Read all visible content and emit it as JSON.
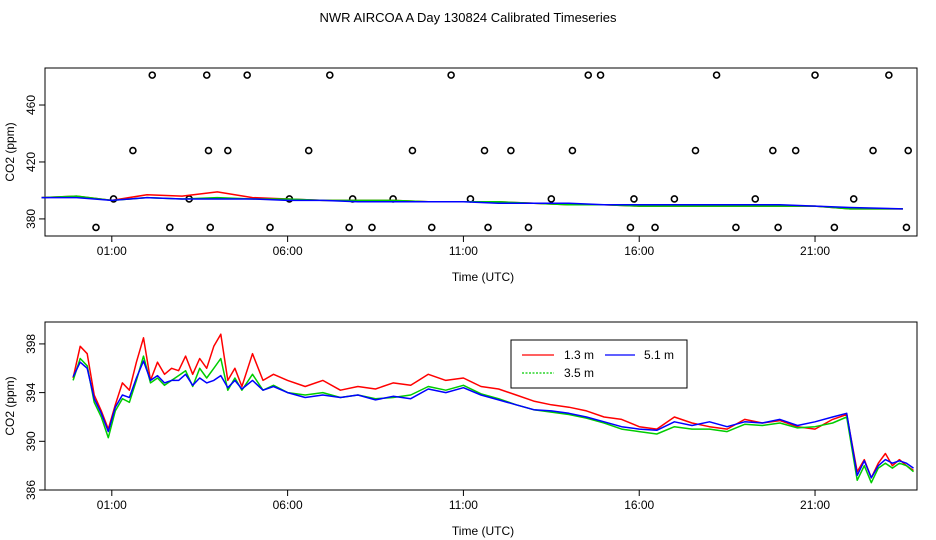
{
  "title": "NWR AIRCOA A  Day 130824  Calibrated Timeseries",
  "colors": {
    "h1": "#ff0000",
    "h3": "#00cc00",
    "h5": "#0000ff",
    "axis": "#000000"
  },
  "chart_data": [
    {
      "type": "scatter+line",
      "name": "top",
      "title": "",
      "xlabel": "Time (UTC)",
      "ylabel": "CO2 (ppm)",
      "xlim": [
        -0.9,
        23.9
      ],
      "ylim": [
        368,
        486
      ],
      "xticks": [
        1,
        6,
        11,
        16,
        21
      ],
      "xtick_labels": [
        "01:00",
        "06:00",
        "11:00",
        "16:00",
        "21:00"
      ],
      "yticks": [
        380,
        420,
        460
      ],
      "ytick_labels": [
        "380",
        "420",
        "460"
      ],
      "reference_points": {
        "x": [
          0.55,
          1.05,
          1.6,
          2.15,
          2.65,
          3.2,
          3.7,
          3.75,
          3.8,
          4.3,
          4.85,
          5.5,
          6.05,
          6.6,
          7.2,
          7.75,
          7.85,
          8.4,
          9.0,
          9.55,
          10.1,
          10.65,
          11.2,
          11.6,
          11.7,
          12.35,
          12.85,
          13.5,
          14.1,
          14.55,
          14.9,
          15.75,
          15.85,
          16.45,
          17.0,
          17.6,
          18.2,
          18.75,
          19.3,
          19.8,
          19.95,
          20.45,
          21.0,
          21.55,
          22.1,
          22.65,
          23.1,
          23.6,
          23.65
        ],
        "y": [
          374,
          394,
          428,
          481,
          374,
          394,
          481,
          428,
          374,
          428,
          481,
          374,
          394,
          428,
          481,
          374,
          394,
          374,
          394,
          428,
          374,
          481,
          394,
          428,
          374,
          428,
          374,
          394,
          428,
          481,
          481,
          374,
          394,
          374,
          394,
          428,
          481,
          374,
          394,
          428,
          374,
          428,
          481,
          374,
          394,
          428,
          481,
          374,
          428
        ]
      },
      "series": [
        {
          "name": "1.3 m",
          "color": "#ff0000",
          "x": [
            -1,
            0,
            1,
            2,
            3,
            4,
            5,
            6,
            7,
            8,
            9,
            10,
            11,
            12,
            13,
            14,
            15,
            16,
            17,
            18,
            19,
            20,
            21,
            22,
            23.5
          ],
          "y": [
            395,
            396,
            393,
            397,
            396,
            399,
            395,
            394,
            393,
            393,
            393,
            392,
            392,
            392,
            391,
            390,
            390,
            389,
            389,
            389,
            389,
            389,
            389,
            387,
            387
          ]
        },
        {
          "name": "3.5 m",
          "color": "#00cc00",
          "x": [
            -1,
            0,
            1,
            2,
            3,
            4,
            5,
            6,
            7,
            8,
            9,
            10,
            11,
            12,
            13,
            14,
            15,
            16,
            17,
            18,
            19,
            20,
            21,
            22,
            23.5
          ],
          "y": [
            395,
            396,
            393,
            395,
            394,
            395,
            394,
            394,
            393,
            393,
            393,
            392,
            392,
            392,
            391,
            390,
            390,
            389,
            389,
            389,
            389,
            389,
            389,
            387,
            387
          ]
        },
        {
          "name": "5.1 m",
          "color": "#0000ff",
          "x": [
            -1,
            0,
            1,
            2,
            3,
            4,
            5,
            6,
            7,
            8,
            9,
            10,
            11,
            12,
            13,
            14,
            15,
            16,
            17,
            18,
            19,
            20,
            21,
            22,
            23.5
          ],
          "y": [
            395,
            395,
            393,
            395,
            394,
            394,
            394,
            393,
            393,
            392,
            392,
            392,
            392,
            391,
            391,
            391,
            390,
            390,
            390,
            390,
            390,
            390,
            389,
            388,
            387
          ]
        }
      ]
    },
    {
      "type": "line",
      "name": "bottom",
      "title": "",
      "xlabel": "Time (UTC)",
      "ylabel": "CO2 (ppm)",
      "xlim": [
        -0.9,
        23.9
      ],
      "ylim": [
        386,
        399.8
      ],
      "xticks": [
        1,
        6,
        11,
        16,
        21
      ],
      "xtick_labels": [
        "01:00",
        "06:00",
        "11:00",
        "16:00",
        "21:00"
      ],
      "yticks": [
        386,
        390,
        394,
        398
      ],
      "ytick_labels": [
        "386",
        "390",
        "394",
        "398"
      ],
      "legend": {
        "position": "top-center",
        "entries": [
          "1.3 m",
          "5.1 m",
          "3.5 m"
        ]
      },
      "series": [
        {
          "name": "1.3 m",
          "color": "#ff0000",
          "x": [
            -0.1,
            0.1,
            0.3,
            0.5,
            0.7,
            0.9,
            1.1,
            1.3,
            1.5,
            1.7,
            1.9,
            2.1,
            2.3,
            2.5,
            2.7,
            2.9,
            3.1,
            3.3,
            3.5,
            3.7,
            3.9,
            4.1,
            4.3,
            4.5,
            4.7,
            5.0,
            5.3,
            5.6,
            6.0,
            6.5,
            7.0,
            7.5,
            8.0,
            8.5,
            9.0,
            9.5,
            10.0,
            10.5,
            11.0,
            11.5,
            12.0,
            12.5,
            13.0,
            13.5,
            14.0,
            14.5,
            15.0,
            15.5,
            16.0,
            16.5,
            17.0,
            17.5,
            18.0,
            18.5,
            19.0,
            19.5,
            20.0,
            20.5,
            21.0,
            21.5,
            21.9,
            22.2,
            22.4,
            22.6,
            22.8,
            23.0,
            23.2,
            23.4,
            23.6,
            23.8
          ],
          "y": [
            395.2,
            397.8,
            397.2,
            393.8,
            392.5,
            391.0,
            393.0,
            394.8,
            394.2,
            396.5,
            398.5,
            395.0,
            396.5,
            395.5,
            396.0,
            395.8,
            397.0,
            395.5,
            396.8,
            396.0,
            397.8,
            398.8,
            395.0,
            396.0,
            394.5,
            397.2,
            395.0,
            395.5,
            395.0,
            394.5,
            395.0,
            394.2,
            394.5,
            394.3,
            394.8,
            394.6,
            395.5,
            395.0,
            395.2,
            394.5,
            394.3,
            393.8,
            393.3,
            393.0,
            392.8,
            392.5,
            392.0,
            391.8,
            391.2,
            391.0,
            392.0,
            391.5,
            391.2,
            391.0,
            391.8,
            391.5,
            391.7,
            391.2,
            391.0,
            391.8,
            392.2,
            387.5,
            388.5,
            387.0,
            388.2,
            389.0,
            388.0,
            388.5,
            388.0,
            387.6
          ]
        },
        {
          "name": "3.5 m",
          "color": "#00cc00",
          "x": [
            -0.1,
            0.1,
            0.3,
            0.5,
            0.7,
            0.9,
            1.1,
            1.3,
            1.5,
            1.7,
            1.9,
            2.1,
            2.3,
            2.5,
            2.7,
            2.9,
            3.1,
            3.3,
            3.5,
            3.7,
            3.9,
            4.1,
            4.3,
            4.5,
            4.7,
            5.0,
            5.3,
            5.6,
            6.0,
            6.5,
            7.0,
            7.5,
            8.0,
            8.5,
            9.0,
            9.5,
            10.0,
            10.5,
            11.0,
            11.5,
            12.0,
            12.5,
            13.0,
            13.5,
            14.0,
            14.5,
            15.0,
            15.5,
            16.0,
            16.5,
            17.0,
            17.5,
            18.0,
            18.5,
            19.0,
            19.5,
            20.0,
            20.5,
            21.0,
            21.5,
            21.9,
            22.2,
            22.4,
            22.6,
            22.8,
            23.0,
            23.2,
            23.4,
            23.6,
            23.8
          ],
          "y": [
            395.0,
            396.8,
            396.2,
            393.2,
            392.0,
            390.3,
            392.5,
            393.5,
            393.2,
            395.0,
            397.0,
            394.8,
            395.2,
            394.6,
            395.0,
            395.4,
            395.8,
            394.5,
            396.0,
            395.2,
            396.0,
            396.8,
            394.2,
            395.2,
            394.2,
            395.5,
            394.2,
            394.6,
            394.0,
            393.8,
            394.0,
            393.6,
            393.8,
            393.5,
            393.6,
            393.8,
            394.5,
            394.2,
            394.6,
            393.9,
            393.5,
            393.0,
            392.6,
            392.4,
            392.2,
            391.9,
            391.5,
            391.0,
            390.8,
            390.6,
            391.2,
            391.0,
            391.0,
            390.8,
            391.4,
            391.3,
            391.5,
            391.1,
            391.2,
            391.5,
            392.0,
            386.8,
            388.0,
            386.6,
            387.8,
            388.2,
            387.8,
            388.2,
            388.0,
            387.5
          ]
        },
        {
          "name": "5.1 m",
          "color": "#0000ff",
          "x": [
            -0.1,
            0.1,
            0.3,
            0.5,
            0.7,
            0.9,
            1.1,
            1.3,
            1.5,
            1.7,
            1.9,
            2.1,
            2.3,
            2.5,
            2.7,
            2.9,
            3.1,
            3.3,
            3.5,
            3.7,
            3.9,
            4.1,
            4.3,
            4.5,
            4.7,
            5.0,
            5.3,
            5.6,
            6.0,
            6.5,
            7.0,
            7.5,
            8.0,
            8.5,
            9.0,
            9.5,
            10.0,
            10.5,
            11.0,
            11.5,
            12.0,
            12.5,
            13.0,
            13.5,
            14.0,
            14.5,
            15.0,
            15.5,
            16.0,
            16.5,
            17.0,
            17.5,
            18.0,
            18.5,
            19.0,
            19.5,
            20.0,
            20.5,
            21.0,
            21.5,
            21.9,
            22.2,
            22.4,
            22.6,
            22.8,
            23.0,
            23.2,
            23.4,
            23.6,
            23.8
          ],
          "y": [
            395.3,
            396.5,
            396.0,
            393.5,
            392.3,
            390.8,
            392.8,
            393.8,
            393.6,
            395.2,
            396.6,
            395.0,
            395.4,
            394.8,
            395.0,
            395.0,
            395.5,
            394.6,
            395.2,
            394.8,
            395.0,
            395.4,
            394.4,
            395.0,
            394.3,
            395.0,
            394.2,
            394.5,
            394.0,
            393.6,
            393.8,
            393.6,
            393.8,
            393.4,
            393.7,
            393.5,
            394.3,
            394.0,
            394.4,
            393.8,
            393.4,
            393.0,
            392.6,
            392.5,
            392.3,
            392.0,
            391.6,
            391.2,
            391.0,
            390.9,
            391.6,
            391.3,
            391.6,
            391.2,
            391.6,
            391.5,
            391.8,
            391.3,
            391.6,
            392.0,
            392.3,
            387.2,
            388.4,
            387.0,
            388.0,
            388.5,
            388.2,
            388.4,
            388.2,
            387.8
          ]
        }
      ]
    }
  ]
}
